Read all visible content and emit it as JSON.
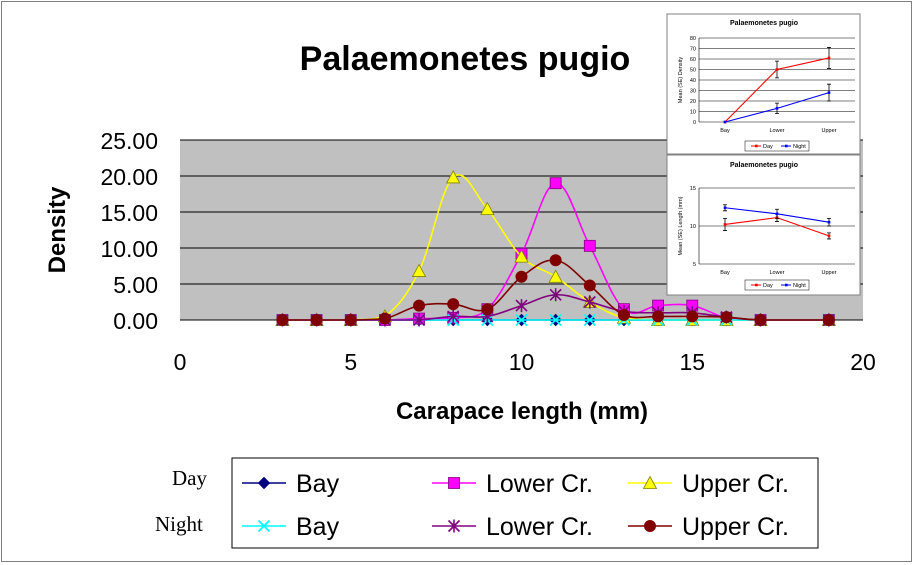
{
  "chart_data": [
    {
      "type": "line",
      "title": "Palaemonetes pugio",
      "xlabel": "Carapace length (mm)",
      "ylabel": "Density",
      "xlim": [
        0,
        20
      ],
      "ylim": [
        0,
        25
      ],
      "x_ticks": [
        "0",
        "5",
        "10",
        "15",
        "20"
      ],
      "y_ticks": [
        "0.00",
        "5.00",
        "10.00",
        "15.00",
        "20.00",
        "25.00"
      ],
      "grid": true,
      "legend": {
        "placement": "bottom",
        "row_labels": [
          "Day",
          "Night"
        ],
        "entries": [
          {
            "series": 0,
            "label": "Bay"
          },
          {
            "series": 1,
            "label": "Lower Cr."
          },
          {
            "series": 2,
            "label": "Upper Cr."
          },
          {
            "series": 3,
            "label": "Bay"
          },
          {
            "series": 4,
            "label": "Lower Cr."
          },
          {
            "series": 5,
            "label": "Upper Cr."
          }
        ]
      },
      "series": [
        {
          "period": "Day",
          "label": "Bay",
          "color": "#000080",
          "marker": "diamond",
          "x": [
            3,
            4,
            5,
            6,
            7,
            8,
            9,
            10,
            11,
            12,
            13,
            14,
            15,
            16,
            17,
            19
          ],
          "y": [
            0,
            0,
            0,
            0,
            0,
            0,
            0,
            0,
            0,
            0,
            0,
            0,
            0,
            0,
            0,
            0
          ]
        },
        {
          "period": "Day",
          "label": "Lower Cr.",
          "color": "#ff00ff",
          "marker": "square",
          "x": [
            3,
            4,
            5,
            6,
            7,
            8,
            9,
            10,
            11,
            12,
            13,
            14,
            15,
            16,
            17,
            19
          ],
          "y": [
            0,
            0,
            0,
            0,
            0.2,
            0.3,
            1.5,
            9.2,
            19.0,
            10.3,
            1.5,
            2.0,
            2.0,
            0.3,
            0,
            0
          ]
        },
        {
          "period": "Day",
          "label": "Upper Cr.",
          "color": "#ffff00",
          "marker": "triangle",
          "x": [
            3,
            4,
            5,
            6,
            7,
            8,
            9,
            10,
            11,
            12,
            13,
            14,
            15,
            16,
            17,
            19
          ],
          "y": [
            0,
            0,
            0,
            0.5,
            6.8,
            19.8,
            15.4,
            8.8,
            6.0,
            2.5,
            0.3,
            0,
            0,
            0,
            0,
            0
          ]
        },
        {
          "period": "Night",
          "label": "Bay",
          "color": "#00ffff",
          "marker": "x",
          "x": [
            3,
            4,
            5,
            6,
            7,
            8,
            9,
            10,
            11,
            12,
            13,
            14,
            15,
            16,
            17,
            19
          ],
          "y": [
            0,
            0,
            0,
            0,
            0,
            0,
            0,
            0,
            0,
            0,
            0,
            0,
            0,
            0,
            0,
            0
          ]
        },
        {
          "period": "Night",
          "label": "Lower Cr.",
          "color": "#800080",
          "marker": "star",
          "x": [
            3,
            4,
            5,
            6,
            7,
            8,
            9,
            10,
            11,
            12,
            13,
            14,
            15,
            16,
            17,
            19
          ],
          "y": [
            0,
            0,
            0,
            0,
            0,
            0.5,
            0.5,
            2.0,
            3.5,
            2.5,
            1.2,
            1.0,
            1.0,
            0.4,
            0,
            0
          ]
        },
        {
          "period": "Night",
          "label": "Upper Cr.",
          "color": "#800000",
          "marker": "circle",
          "x": [
            3,
            4,
            5,
            6,
            7,
            8,
            9,
            10,
            11,
            12,
            13,
            14,
            15,
            16,
            17,
            19
          ],
          "y": [
            0,
            0,
            0,
            0.2,
            2.0,
            2.2,
            1.5,
            6.0,
            8.3,
            4.8,
            0.7,
            0.5,
            0.5,
            0.4,
            0,
            0
          ]
        }
      ]
    },
    {
      "type": "line",
      "title": "Palaemonetes pugio",
      "xlabel": "",
      "ylabel": "Mean (SE) Density",
      "categories": [
        "Bay",
        "Lower",
        "Upper"
      ],
      "ylim": [
        0,
        80
      ],
      "y_ticks": [
        "0",
        "10",
        "20",
        "30",
        "40",
        "50",
        "60",
        "70",
        "80"
      ],
      "legend": {
        "placement": "bottom"
      },
      "series": [
        {
          "name": "Day",
          "color": "#ff0000",
          "values": [
            0,
            50,
            61
          ],
          "errors": [
            0,
            8,
            10
          ]
        },
        {
          "name": "Night",
          "color": "#0000ff",
          "values": [
            0,
            13,
            28
          ],
          "errors": [
            0,
            5,
            8
          ]
        }
      ]
    },
    {
      "type": "line",
      "title": "Palaemonetes pugio",
      "xlabel": "",
      "ylabel": "Mean (SE) Length (mm)",
      "categories": [
        "Bay",
        "Lower",
        "Upper"
      ],
      "ylim": [
        5,
        15
      ],
      "y_ticks": [
        "5",
        "10",
        "15"
      ],
      "legend": {
        "placement": "bottom"
      },
      "series": [
        {
          "name": "Day",
          "color": "#ff0000",
          "values": [
            10.2,
            11.1,
            8.7
          ],
          "errors": [
            0.8,
            0.5,
            0.4
          ]
        },
        {
          "name": "Night",
          "color": "#0000ff",
          "values": [
            12.4,
            11.6,
            10.5
          ],
          "errors": [
            0.4,
            0.6,
            0.5
          ]
        }
      ]
    }
  ]
}
